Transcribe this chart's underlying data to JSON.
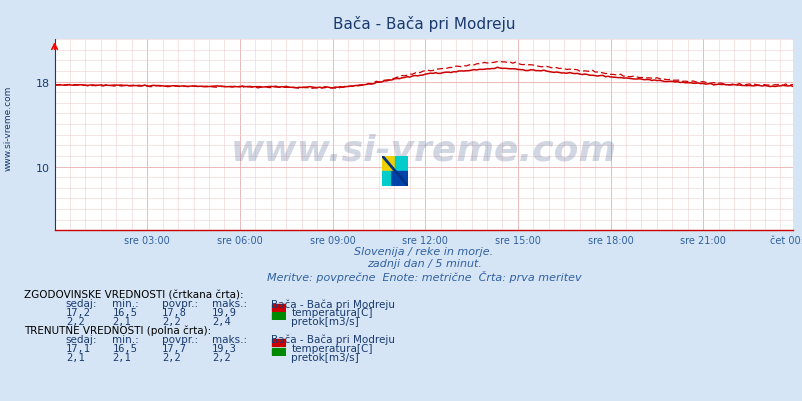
{
  "title": "Bača - Bača pri Modreju",
  "bg_color": "#d5e5f5",
  "plot_bg_color": "#ffffff",
  "title_color": "#1a3a6e",
  "axis_color": "#1a3a6e",
  "tick_color": "#3060a0",
  "grid_color_major": "#e8b0b0",
  "grid_color_minor": "#f0d0d0",
  "temp_color": "#cc0000",
  "flow_color": "#008800",
  "ylim": [
    4,
    22
  ],
  "yticks": [
    10,
    18
  ],
  "n_points": 288,
  "subtitle1": "Slovenija / reke in morje.",
  "subtitle2": "zadnji dan / 5 minut.",
  "subtitle3": "Meritve: povprečne  Enote: metrične  Črta: prva meritev",
  "xtick_labels": [
    "sre 03:00",
    "sre 06:00",
    "sre 09:00",
    "sre 12:00",
    "sre 15:00",
    "sre 18:00",
    "sre 21:00",
    "čet 00:00"
  ],
  "watermark": "www.si-vreme.com",
  "watermark_color": "#1a3a6e",
  "sidebar_text": "www.si-vreme.com",
  "hist_label": "ZGODOVINSKE VREDNOSTI (črtkana črta):",
  "curr_label": "TRENUTNE VREDNOSTI (polna črta):",
  "station_label": "Bača - Bača pri Modreju",
  "hist_temp": [
    "17,2",
    "16,5",
    "17,8",
    "19,9"
  ],
  "hist_flow": [
    "2,2",
    "2,1",
    "2,2",
    "2,4"
  ],
  "curr_temp": [
    "17,1",
    "16,5",
    "17,7",
    "19,3"
  ],
  "curr_flow": [
    "2,1",
    "2,1",
    "2,2",
    "2,2"
  ],
  "col_headers": [
    "sedaj:",
    "min.:",
    "povpr.:",
    "maks.:"
  ],
  "temp_label": "temperatura[C]",
  "flow_label": "pretok[m3/s]"
}
